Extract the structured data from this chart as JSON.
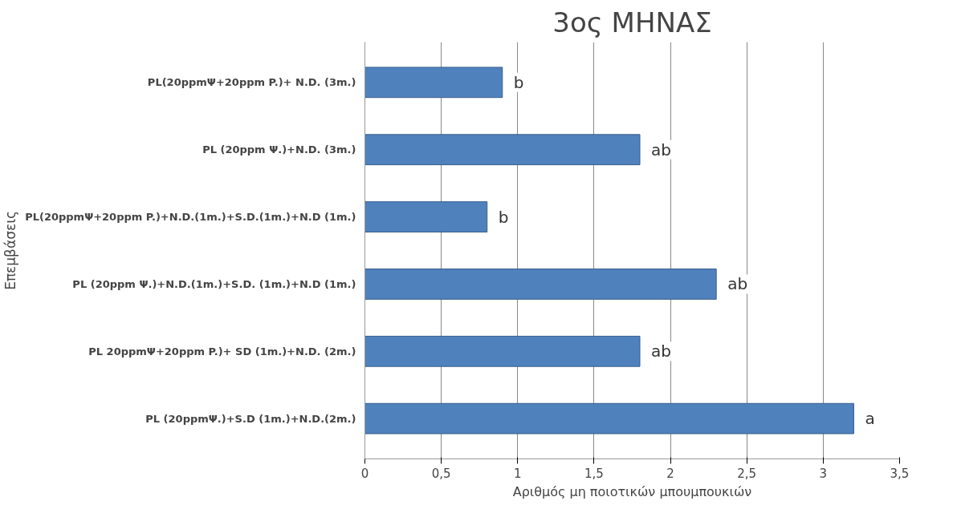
{
  "chart_data": {
    "type": "bar",
    "orientation": "horizontal",
    "title": "3ος ΜΗΝΑΣ",
    "xlabel": "Αριθμός μη ποιοτικών μπουμπουκιών",
    "ylabel": "Επεμβάσεις",
    "categories": [
      "PL(20ppmΨ+20ppm P.)+ N.D. (3m.)",
      "PL (20ppm Ψ.)+N.D. (3m.)",
      "PL(20ppmΨ+20ppm P.)+N.D.(1m.)+S.D.(1m.)+N.D (1m.)",
      "PL (20ppm Ψ.)+N.D.(1m.)+S.D. (1m.)+N.D (1m.)",
      "PL 20ppmΨ+20ppm P.)+ SD (1m.)+N.D. (2m.)",
      "PL (20ppmΨ.)+S.D (1m.)+N.D.(2m.)"
    ],
    "values": [
      0.9,
      1.8,
      0.8,
      2.3,
      1.8,
      3.2
    ],
    "color": "#4f81bd",
    "xlim": [
      0,
      3.5
    ],
    "xticks": [
      0,
      {
        "value": 0.5,
        "label": "0,5"
      },
      1,
      {
        "value": 1.5,
        "label": "1,5"
      },
      2,
      {
        "value": 2.5,
        "label": "2,5"
      },
      3,
      {
        "value": 3.5,
        "label": "3,5"
      }
    ],
    "grid": "x",
    "annotations": [
      {
        "text": "b",
        "x": 0.9,
        "y": "PL(20ppmΨ+20ppm P.)+ N.D. (3m.)"
      },
      {
        "text": "ab",
        "x": 1.8,
        "y": "PL (20ppm Ψ.)+N.D. (3m.)"
      },
      {
        "text": "b",
        "x": 0.8,
        "y": "PL(20ppmΨ+20ppm P.)+N.D.(1m.)+S.D.(1m.)+N.D (1m.)"
      },
      {
        "text": "ab",
        "x": 2.3,
        "y": "PL (20ppm Ψ.)+N.D.(1m.)+S.D. (1m.)+N.D (1m.)"
      },
      {
        "text": "ab",
        "x": 1.8,
        "y": "PL 20ppmΨ+20ppm P.)+ SD (1m.)+N.D. (2m.)"
      },
      {
        "text": "a",
        "x": 3.2,
        "y": "PL (20ppmΨ.)+S.D (1m.)+N.D.(2m.)"
      }
    ]
  }
}
